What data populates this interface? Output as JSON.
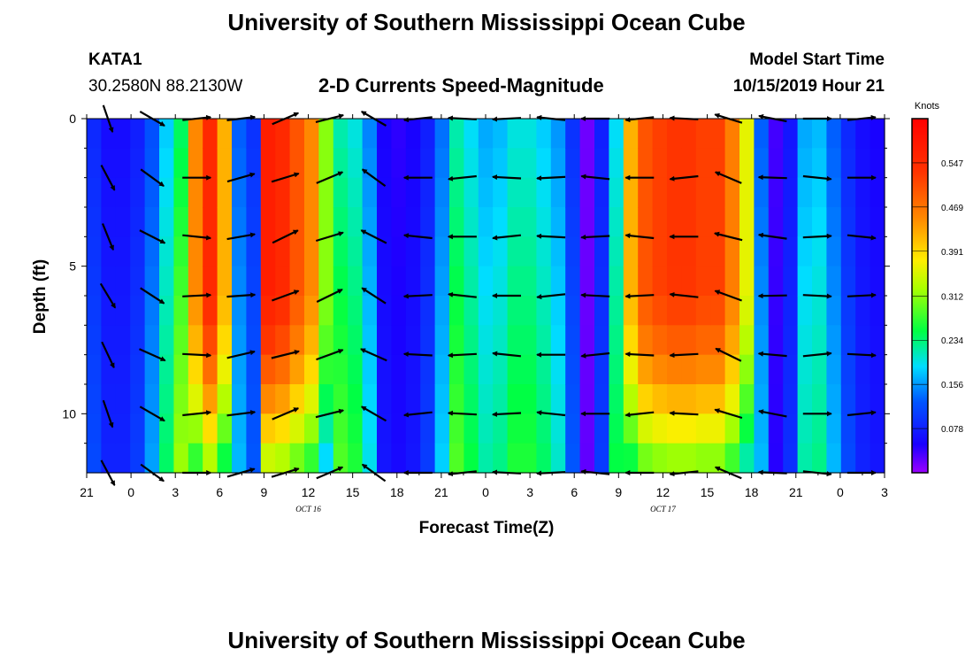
{
  "header": {
    "title": "University of Southern Mississippi Ocean Cube",
    "station_id": "KATA1",
    "station_coords": "30.2580N 88.2130W",
    "plot_title": "2-D Currents Speed-Magnitude",
    "model_start_label": "Model Start Time",
    "model_start_value": "10/15/2019 Hour 21"
  },
  "footer": {
    "title": "University of Southern Mississippi Ocean Cube"
  },
  "chart_data": {
    "type": "heatmap",
    "title": "2-D Currents Speed-Magnitude",
    "xlabel": "Forecast Time(Z)",
    "ylabel": "Depth (ft)",
    "colorbar_label": "Knots",
    "colorbar_ticks": [
      "0.547",
      "0.469",
      "0.391",
      "0.312",
      "0.234",
      "0.156",
      "0.078"
    ],
    "colorbar_tick_values": [
      0.547,
      0.469,
      0.391,
      0.312,
      0.234,
      0.156,
      0.078
    ],
    "color_range": [
      0.0,
      0.625
    ],
    "x_range_hours": [
      0,
      54
    ],
    "x_ticks": [
      "21",
      "0",
      "3",
      "6",
      "9",
      "12",
      "15",
      "18",
      "21",
      "0",
      "3",
      "6",
      "9",
      "12",
      "15",
      "18",
      "21",
      "0",
      "3"
    ],
    "x_tick_hours": [
      0,
      3,
      6,
      9,
      12,
      15,
      18,
      21,
      24,
      27,
      30,
      33,
      36,
      39,
      42,
      45,
      48,
      51,
      54
    ],
    "date_labels": [
      {
        "label": "OCT 16",
        "hour": 15
      },
      {
        "label": "OCT 17",
        "hour": 39
      }
    ],
    "y_range": [
      0,
      12
    ],
    "y_ticks": [
      "0",
      "5",
      "10"
    ],
    "y_tick_values": [
      0,
      5,
      10
    ],
    "column_speeds_knots": [
      0.1,
      0.07,
      0.07,
      0.09,
      0.14,
      0.21,
      0.28,
      0.45,
      0.55,
      0.42,
      0.15,
      0.11,
      0.57,
      0.55,
      0.5,
      0.45,
      0.31,
      0.25,
      0.23,
      0.17,
      0.06,
      0.05,
      0.06,
      0.09,
      0.16,
      0.25,
      0.22,
      0.19,
      0.2,
      0.23,
      0.23,
      0.21,
      0.18,
      0.11,
      0.02,
      0.09,
      0.22,
      0.42,
      0.5,
      0.52,
      0.53,
      0.53,
      0.52,
      0.52,
      0.46,
      0.36,
      0.15,
      0.04,
      0.08,
      0.19,
      0.2,
      0.15,
      0.1,
      0.07,
      0.06
    ],
    "vector_depths_ft": [
      0,
      2,
      4,
      6,
      8,
      10,
      12
    ],
    "vector_hours": [
      0,
      3,
      6,
      9,
      12,
      15,
      18,
      21,
      24,
      27,
      30,
      33,
      36,
      39,
      42,
      45,
      48,
      51
    ],
    "vector_directions_deg": [
      -65,
      -30,
      0,
      10,
      20,
      20,
      150,
      180,
      180,
      180,
      180,
      180,
      180,
      180,
      160,
      175,
      0,
      0
    ]
  }
}
